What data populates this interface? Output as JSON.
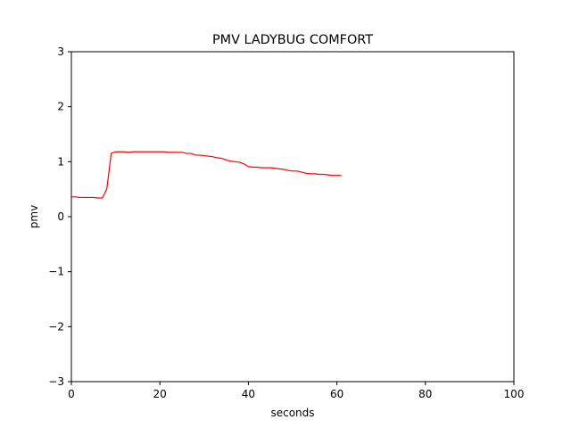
{
  "chart_data": {
    "type": "line",
    "title": "PMV LADYBUG COMFORT",
    "xlabel": "seconds",
    "ylabel": "pmv",
    "xlim": [
      0,
      100
    ],
    "ylim": [
      -3,
      3
    ],
    "x_ticks": [
      0,
      20,
      40,
      60,
      80,
      100
    ],
    "y_ticks": [
      -3,
      -2,
      -1,
      0,
      1,
      2,
      3
    ],
    "x_tick_labels": [
      "0",
      "20",
      "40",
      "60",
      "80",
      "100"
    ],
    "y_tick_labels": [
      "−3",
      "−2",
      "−1",
      "0",
      "1",
      "2",
      "3"
    ],
    "grid": false,
    "series": [
      {
        "color": "#ff0000",
        "x": [
          0,
          1,
          2,
          3,
          4,
          5,
          6,
          7,
          8,
          9,
          10,
          11,
          12,
          13,
          14,
          15,
          16,
          17,
          18,
          19,
          20,
          21,
          22,
          23,
          24,
          25,
          26,
          27,
          28,
          29,
          30,
          31,
          32,
          33,
          34,
          35,
          36,
          37,
          38,
          39,
          40,
          41,
          42,
          43,
          44,
          45,
          46,
          47,
          48,
          49,
          50,
          51,
          52,
          53,
          54,
          55,
          56,
          57,
          58,
          59,
          60,
          61
        ],
        "y": [
          0.36,
          0.36,
          0.35,
          0.35,
          0.35,
          0.35,
          0.34,
          0.34,
          0.5,
          1.15,
          1.18,
          1.18,
          1.18,
          1.17,
          1.18,
          1.18,
          1.18,
          1.18,
          1.18,
          1.18,
          1.18,
          1.18,
          1.17,
          1.17,
          1.17,
          1.17,
          1.15,
          1.15,
          1.12,
          1.12,
          1.11,
          1.1,
          1.09,
          1.07,
          1.06,
          1.03,
          1.01,
          1.0,
          0.99,
          0.96,
          0.91,
          0.9,
          0.9,
          0.89,
          0.89,
          0.89,
          0.88,
          0.87,
          0.86,
          0.84,
          0.83,
          0.83,
          0.81,
          0.79,
          0.78,
          0.78,
          0.77,
          0.77,
          0.76,
          0.75,
          0.75,
          0.75
        ]
      }
    ]
  }
}
